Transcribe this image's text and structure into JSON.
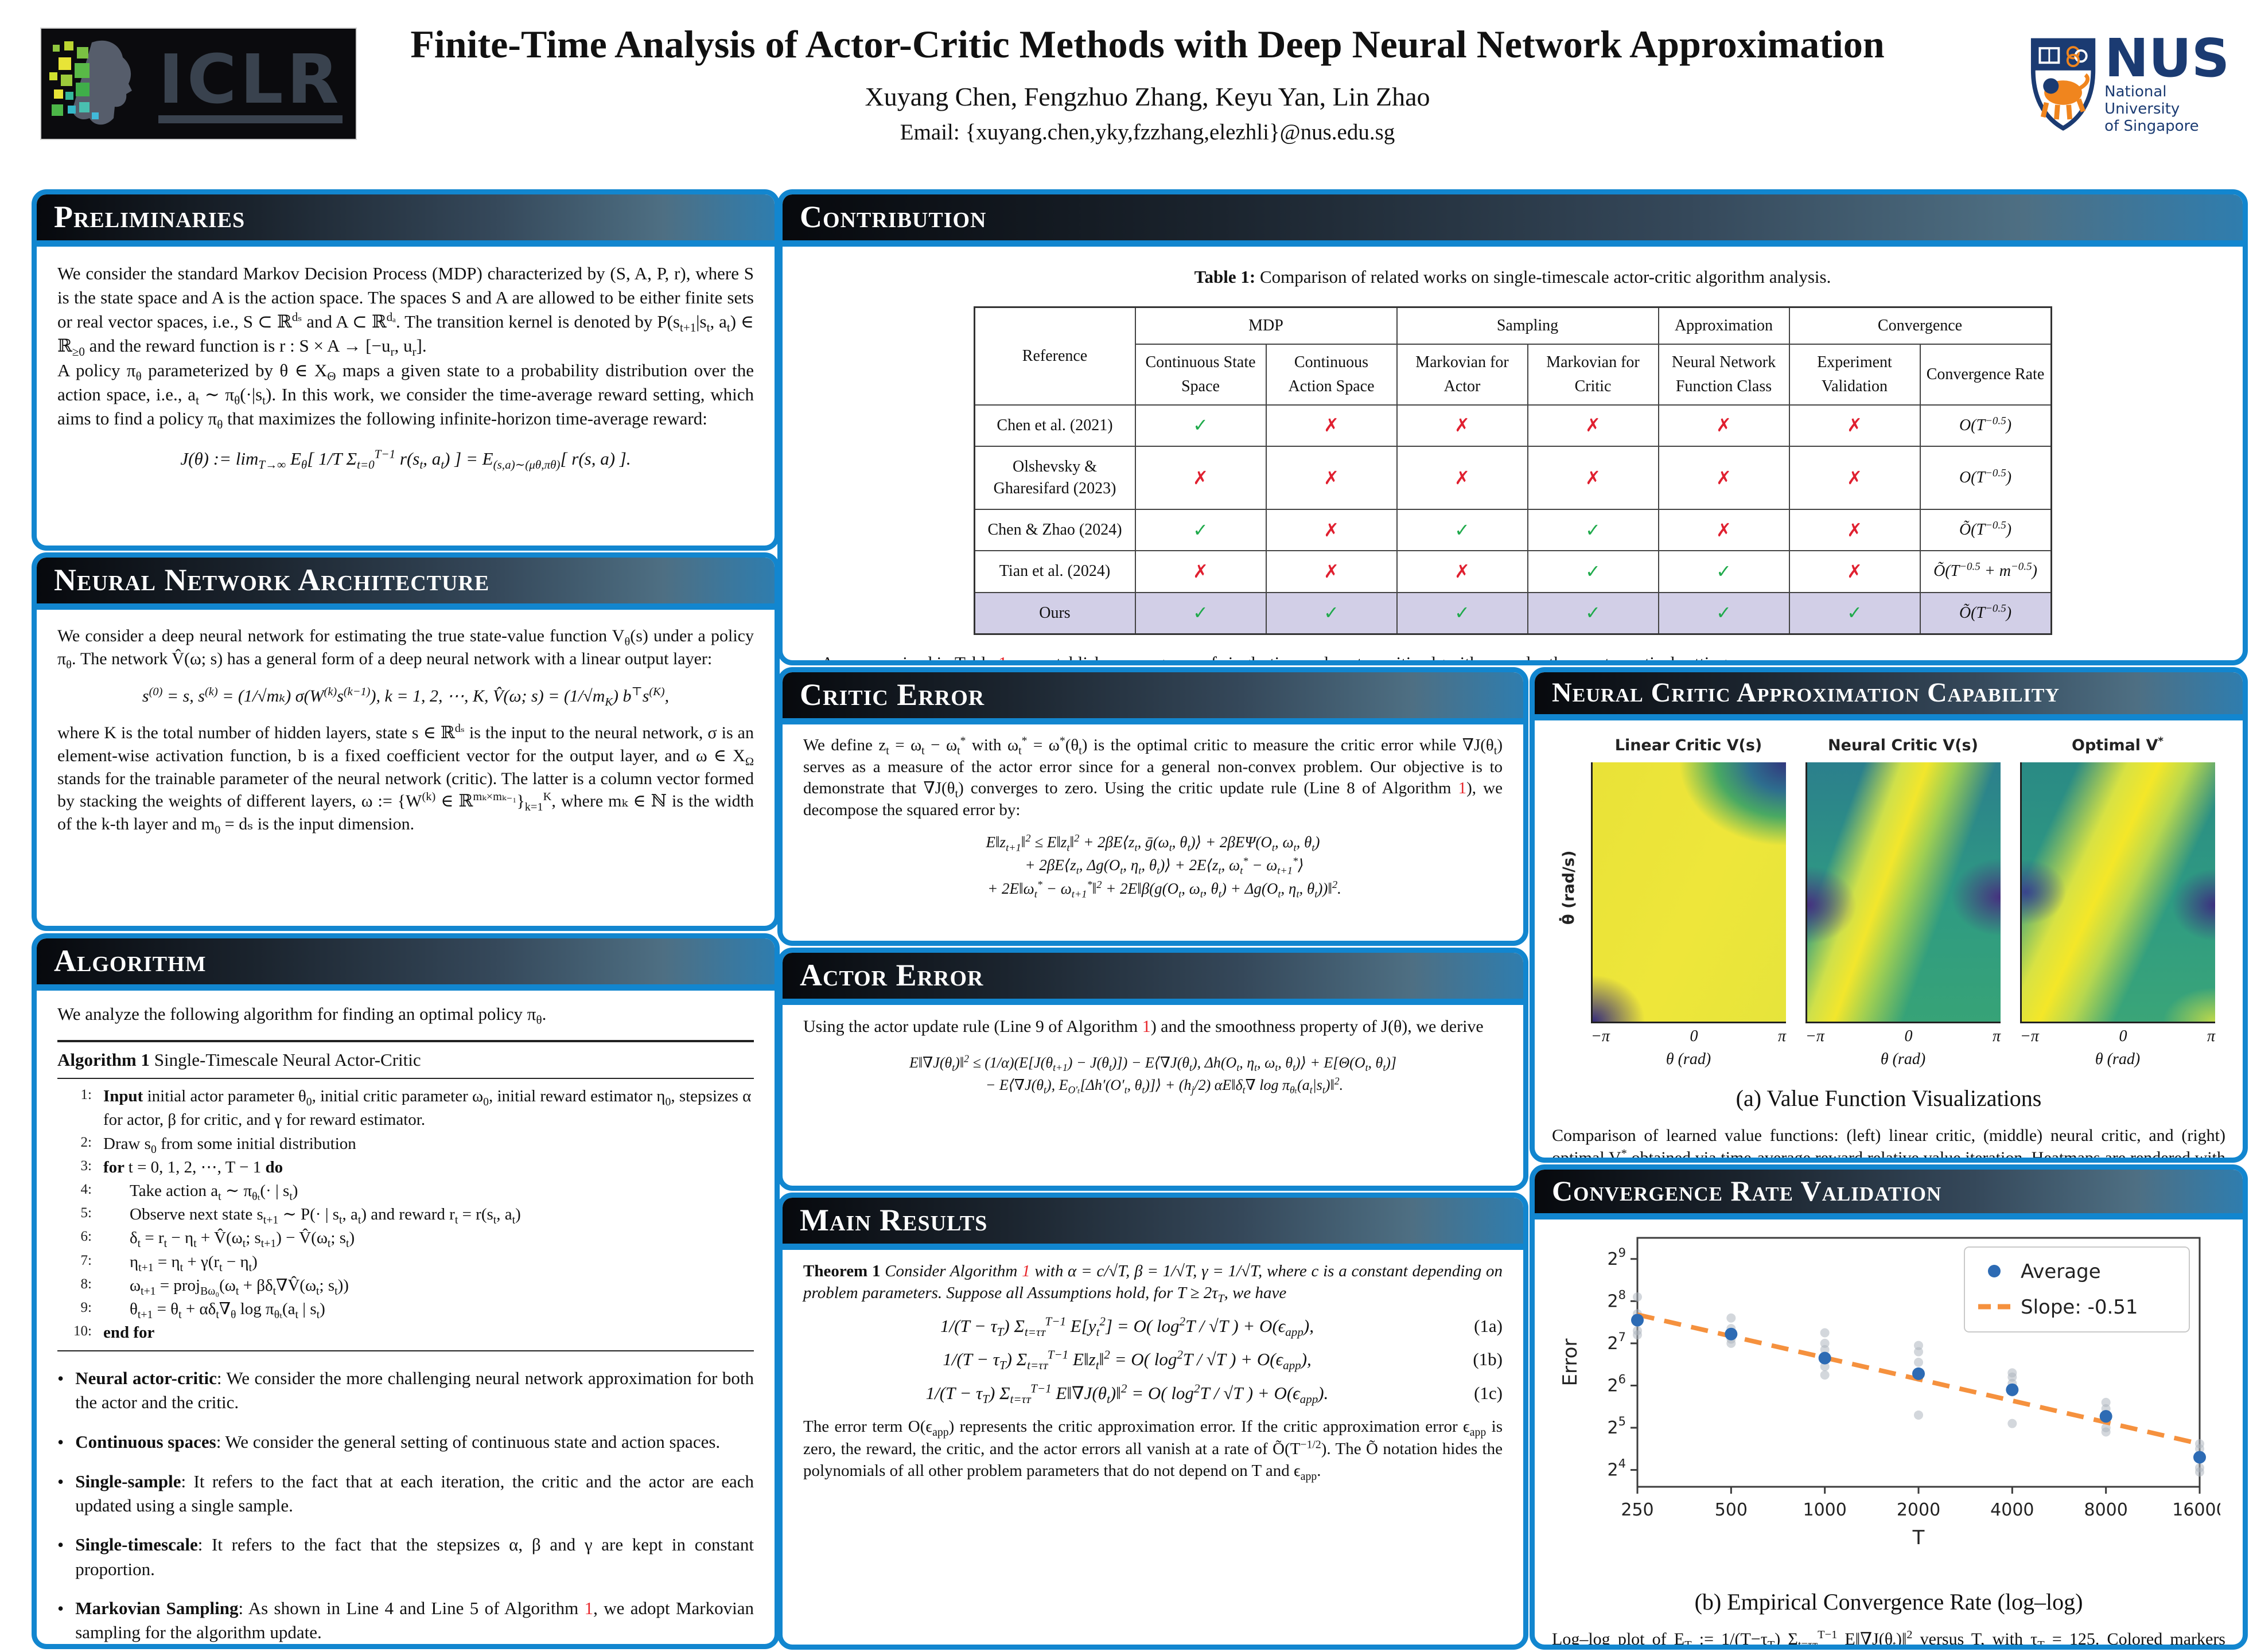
{
  "header": {
    "title": "Finite-Time Analysis of Actor-Critic Methods with Deep Neural Network Approximation",
    "authors": "Xuyang Chen,  Fengzhuo Zhang,  Keyu Yan,  Lin Zhao",
    "email": "Email: {xuyang.chen,yky,fzzhang,elezhli}@nus.edu.sg",
    "iclr_text": "ICLR",
    "nus": {
      "acronym": "NUS",
      "line1": "National University",
      "line2": "of Singapore"
    }
  },
  "preliminaries": {
    "title": "Preliminaries",
    "p1": "We consider the standard Markov Decision Process (MDP) characterized by (S, A, P, r), where S is the state space and A is the action space. The spaces S and A are allowed to be either finite sets or real vector spaces, i.e., S ⊂ ℝ^{dₛ} and A ⊂ ℝ^{dₐ}. The transition kernel is denoted by P(s_{t+1}|s_{t}, a_{t}) ∈ ℝ_{≥0} and the reward function is r : S × A → [−u_{r}, u_{r}].",
    "p2": "A policy π_{θ} parameterized by θ ∈ X_{Θ} maps a given state to a probability distribution over the action space, i.e., a_{t} ∼ π_{θ}(·|s_{t}). In this work, we consider the time-average reward setting, which aims to find a policy π_{θ} that maximizes the following infinite-horizon time-average reward:",
    "equation": "J(θ) := lim_{T→∞} E_{θ}[ 1/T Σ_{t=0}^{T−1} r(s_{t}, a_{t}) ] = E_{(s,a)∼(μθ,πθ)}[ r(s, a) ]."
  },
  "architecture": {
    "title": "Neural Network Architecture",
    "p1": "We consider a deep neural network for estimating the true state-value function V_{θ}(s) under a policy π_{θ}. The network V̂(ω; s) has a general form of a deep neural network with a linear output layer:",
    "equation": "s^{(0)} = s,    s^{(k)} = (1/√mₖ) σ(W^{(k)}s^{(k−1)}),  k = 1, 2, ⋯, K,    V̂(ω; s) = (1/√m_{K}) b^{⊤}s^{(K)},",
    "p2": "where K is the total number of hidden layers, state s ∈ ℝ^{dₛ} is the input to the neural network, σ is an element-wise activation function, b is a fixed coefficient vector for the output layer, and ω ∈ X_{Ω} stands for the trainable parameter of the neural network (critic). The latter is a column vector formed by stacking the weights of different layers, ω := {W^{(k)} ∈ ℝ^{mₖ×mₖ₋₁}}_{k=1}^{K}, where mₖ ∈ ℕ is the width of the k-th layer and m_{0} = dₛ is the input dimension."
  },
  "algorithm": {
    "title": "Algorithm",
    "intro": "We analyze the following algorithm for finding an optimal policy π_{θ}.",
    "caption": [
      {
        "t": "Algorithm 1 ",
        "b": true
      },
      {
        "t": "Single-Timescale Neural Actor-Critic"
      }
    ],
    "lines": [
      {
        "num": "1:",
        "indent": 0,
        "rich": [
          {
            "t": "Input ",
            "b": true
          },
          {
            "t": "initial actor parameter θ_{0}, initial critic parameter ω_{0}, initial reward estimator η_{0}, stepsizes α for actor, β for critic, and γ for reward estimator."
          }
        ]
      },
      {
        "num": "2:",
        "indent": 0,
        "rich": [
          {
            "t": "Draw s_{0} from some initial distribution"
          }
        ]
      },
      {
        "num": "3:",
        "indent": 0,
        "rich": [
          {
            "t": "for ",
            "b": true
          },
          {
            "t": "t = 0, 1, 2, ⋯, T − 1 "
          },
          {
            "t": "do",
            "b": true
          }
        ]
      },
      {
        "num": "4:",
        "indent": 1,
        "rich": [
          {
            "t": "Take action a_{t} ∼ π_{θₜ}(· | s_{t})"
          }
        ]
      },
      {
        "num": "5:",
        "indent": 1,
        "rich": [
          {
            "t": "Observe next state s_{t+1} ∼ P(· | s_{t}, a_{t}) and reward r_{t} = r(s_{t}, a_{t})"
          }
        ]
      },
      {
        "num": "6:",
        "indent": 1,
        "rich": [
          {
            "t": "δ_{t} = r_{t} − η_{t} + V̂(ω_{t}; s_{t+1}) − V̂(ω_{t}; s_{t})"
          }
        ]
      },
      {
        "num": "7:",
        "indent": 1,
        "rich": [
          {
            "t": "η_{t+1} = η_{t} + γ(r_{t} − η_{t})"
          }
        ]
      },
      {
        "num": "8:",
        "indent": 1,
        "rich": [
          {
            "t": "ω_{t+1} = proj_{Bω₀}(ω_{t} + βδ_{t}∇V̂(ω_{t}; s_{t}))"
          }
        ]
      },
      {
        "num": "9:",
        "indent": 1,
        "rich": [
          {
            "t": "θ_{t+1} = θ_{t} + αδ_{t}∇_{θ} log π_{θₜ}(a_{t} | s_{t})"
          }
        ]
      },
      {
        "num": "10:",
        "indent": 0,
        "rich": [
          {
            "t": "end for",
            "b": true
          }
        ]
      }
    ],
    "bullets": [
      {
        "rich": [
          {
            "t": "Neural actor-critic",
            "b": true
          },
          {
            "t": ": We consider the more challenging neural network approximation for both the actor and the critic."
          }
        ]
      },
      {
        "rich": [
          {
            "t": "Continuous spaces",
            "b": true
          },
          {
            "t": ": We consider the general setting of continuous state and action spaces."
          }
        ]
      },
      {
        "rich": [
          {
            "t": "Single-sample",
            "b": true
          },
          {
            "t": ": It refers to the fact that at each iteration, the critic and the actor are each updated using a single sample."
          }
        ]
      },
      {
        "rich": [
          {
            "t": "Single-timescale",
            "b": true
          },
          {
            "t": ": It refers to the fact that the stepsizes α, β and γ are kept in constant proportion."
          }
        ]
      },
      {
        "rich": [
          {
            "t": "Markovian Sampling",
            "b": true
          },
          {
            "t": ": As shown in Line 4 and Line 5 of Algorithm "
          },
          {
            "t": "1",
            "red": true
          },
          {
            "t": ", we adopt Markovian sampling for the algorithm update."
          }
        ]
      }
    ]
  },
  "contribution": {
    "title": "Contribution",
    "table_caption": [
      {
        "t": "Table 1: ",
        "b": true
      },
      {
        "t": "Comparison of related works on single-timescale actor-critic algorithm analysis."
      }
    ],
    "table": {
      "col_groups": [
        {
          "label": "Reference",
          "rowspan": 2
        },
        {
          "label": "MDP",
          "span": 2
        },
        {
          "label": "Sampling",
          "span": 2
        },
        {
          "label": "Approximation",
          "span": 1
        },
        {
          "label": "Convergence",
          "span": 2
        }
      ],
      "sub_headers": [
        "Continuous State Space",
        "Continuous Action Space",
        "Markovian for Actor",
        "Markovian for Critic",
        "Neural Network Function Class",
        "Experiment Validation",
        "Convergence Rate"
      ],
      "check_glyph": "✓",
      "cross_glyph": "✗",
      "check_color": "#1faa4b",
      "cross_color": "#e02030",
      "highlight_color": "#d2cfe7",
      "rows": [
        {
          "ref": "Chen et al. (2021)",
          "marks": [
            1,
            0,
            0,
            0,
            0,
            0
          ],
          "rate": "O(T^{−0.5})",
          "highlight": false
        },
        {
          "ref": "Olshevsky & Gharesifard (2023)",
          "marks": [
            0,
            0,
            0,
            0,
            0,
            0
          ],
          "rate": "O(T^{−0.5})",
          "highlight": false
        },
        {
          "ref": "Chen & Zhao (2024)",
          "marks": [
            1,
            0,
            1,
            1,
            0,
            0
          ],
          "rate": "Õ(T^{−0.5})",
          "highlight": false
        },
        {
          "ref": "Tian et al. (2024)",
          "marks": [
            0,
            0,
            0,
            1,
            1,
            0
          ],
          "rate": "Õ(T^{−0.5} + m^{−0.5})",
          "highlight": false
        },
        {
          "ref": "Ours",
          "marks": [
            1,
            1,
            1,
            1,
            1,
            1
          ],
          "rate": "Õ(T^{−0.5})",
          "highlight": true
        }
      ]
    },
    "bullet": [
      {
        "t": "As summarized in Table "
      },
      {
        "t": "1",
        "red": true
      },
      {
        "t": ", we establish convergence of single-timescale actor-critic algorithms under the most practical settings."
      }
    ]
  },
  "critic_error": {
    "title": "Critic Error",
    "p": [
      {
        "t": "We define z_{t} = ω_{t} − ω_{t}^{*} with ω_{t}^{*} = ω^{*}(θ_{t}) is the optimal critic to measure the critic error while ∇J(θ_{t}) serves as a measure of the actor error since for a general non-convex problem. Our objective is to demonstrate that ∇J(θ_{t}) converges to zero. Using the critic update rule (Line 8 of Algorithm "
      },
      {
        "t": "1",
        "red": true
      },
      {
        "t": "), we decompose the squared error by:"
      }
    ],
    "eq_lines": [
      "E‖z_{t+1}‖^{2} ≤ E‖z_{t}‖^{2} + 2βE⟨z_{t}, ḡ(ω_{t}, θ_{t})⟩ + 2βEΨ(O_{t}, ω_{t}, θ_{t})",
      "+ 2βE⟨z_{t}, Δg(O_{t}, η_{t}, θ_{t})⟩ + 2E⟨z_{t}, ω_{t}^{*} − ω_{t+1}^{*}⟩",
      "+ 2E‖ω_{t}^{*} − ω_{t+1}^{*}‖^{2} + 2E‖β(g(O_{t}, ω_{t}, θ_{t}) + Δg(O_{t}, η_{t}, θ_{t}))‖^{2}."
    ]
  },
  "actor_error": {
    "title": "Actor Error",
    "p": [
      {
        "t": "Using the actor update rule (Line 9 of Algorithm "
      },
      {
        "t": "1",
        "red": true
      },
      {
        "t": ") and the smoothness property of J(θ), we derive"
      }
    ],
    "eq_lines": [
      "E‖∇J(θ_{t})‖^{2} ≤ (1/α)(E[J(θ_{t+1}) − J(θ_{t})]) − E⟨∇J(θ_{t}), Δh(O_{t}, η_{t}, ω_{t}, θ_{t})⟩ + E[Θ(O_{t}, θ_{t})]",
      "− E⟨∇J(θ_{t}), E_{O′ₜ}[Δh′(O′_{t}, θ_{t})]⟩ + (h_{j}/2) αE‖δ_{t}∇ log π_{θₜ}(a_{t}|s_{t})‖^{2}."
    ]
  },
  "main_results": {
    "title": "Main Results",
    "theorem": [
      {
        "t": "Theorem 1  ",
        "b": true
      },
      {
        "t": "Consider Algorithm ",
        "i": true
      },
      {
        "t": "1",
        "red": true,
        "i": true
      },
      {
        "t": " with α = c/√T, β = 1/√T, γ = 1/√T, where c is a constant depending on problem parameters. Suppose all Assumptions hold, for T ≥ 2τ_{T}, we have",
        "i": true
      }
    ],
    "equations": [
      {
        "body": "1/(T − τ_{T}) Σ_{t=τᴛ}^{T−1} E[y_{t}^{2}] = O( log^{2}T / √T ) + O(ϵ_{app}),",
        "tag": "(1a)"
      },
      {
        "body": "1/(T − τ_{T}) Σ_{t=τᴛ}^{T−1} E‖z_{t}‖^{2} = O( log^{2}T / √T ) + O(ϵ_{app}),",
        "tag": "(1b)"
      },
      {
        "body": "1/(T − τ_{T}) Σ_{t=τᴛ}^{T−1} E‖∇J(θ_{t})‖^{2} = O( log^{2}T / √T ) + O(ϵ_{app}).",
        "tag": "(1c)"
      }
    ],
    "p": "The error term O(ϵ_{app}) represents the critic approximation error. If the critic approximation error ϵ_{app} is zero, the reward, the critic, and the actor errors all vanish at a rate of Õ(T^{−1/2}). The Õ notation hides the polynomials of all other problem parameters that do not depend on T and ϵ_{app}."
  },
  "critic_capability": {
    "title": "Neural Critic Approximation Capability",
    "panels": [
      {
        "title": "Linear Critic V(s)"
      },
      {
        "title": "Neural Critic V(s)"
      },
      {
        "title": "Optimal  V^{*}"
      }
    ],
    "x_ticks": [
      "−π",
      "0",
      "π"
    ],
    "xlabel": "θ (rad)",
    "ylabel": "θ̇ (rad/s)",
    "caption": "(a) Value Function Visualizations",
    "p": "Comparison of learned value functions: (left) linear critic, (middle) neural critic, and (right) optimal V^{*} obtained via time-average reward relative value iteration. Heatmaps are rendered with the Viridis colormap, where blue indicates low values, green intermediate values, and yellow high values."
  },
  "convergence": {
    "title": "Convergence Rate Validation",
    "caption": "(b) Empirical Convergence Rate (log–log)",
    "p": "Log–log plot of E_{T} := 1/(T−τ_{T}) Σ_{t=τᴛ}^{T−1} E‖∇J(θ_{t})‖^{2} versus T, with τ_{T} = 125. Colored markers represent five independent runs, and the dashed line shows their mean with a linear regression fit."
  },
  "chart_data": {
    "type": "scatter",
    "title": "(b) Empirical Convergence Rate (log–log)",
    "xlabel": "T",
    "ylabel": "Error",
    "x_scale": "log2",
    "y_scale": "log2",
    "x_ticks": [
      250,
      500,
      1000,
      2000,
      4000,
      8000,
      16000
    ],
    "y_tick_exponents": [
      4,
      5,
      6,
      7,
      8,
      9
    ],
    "ylim_log2": [
      3.6,
      9.5
    ],
    "legend": [
      {
        "label": "Average",
        "type": "point",
        "color": "#2d6bb4"
      },
      {
        "label": "Slope: -0.51",
        "type": "dashed",
        "color": "#f5913e"
      }
    ],
    "average": {
      "x": [
        250,
        500,
        1000,
        2000,
        4000,
        8000,
        16000
      ],
      "y_log2": [
        7.55,
        7.22,
        6.65,
        6.28,
        5.9,
        5.27,
        4.3
      ]
    },
    "runs_y_log2": [
      [
        8.1,
        7.7,
        7.5,
        7.3,
        7.2
      ],
      [
        7.6,
        7.35,
        7.25,
        7.1,
        7.0
      ],
      [
        7.25,
        7.0,
        6.85,
        6.45,
        6.25
      ],
      [
        6.95,
        6.8,
        6.55,
        6.2,
        5.3
      ],
      [
        6.3,
        6.2,
        6.05,
        5.85,
        5.1
      ],
      [
        5.6,
        5.45,
        5.3,
        5.0,
        4.9
      ],
      [
        4.62,
        4.5,
        4.3,
        4.05,
        3.95
      ]
    ],
    "runs_color": "#aeb7c0",
    "fit_line": {
      "x": [
        250,
        16000
      ],
      "y_log2": [
        7.68,
        4.62
      ],
      "slope": -0.51
    }
  }
}
